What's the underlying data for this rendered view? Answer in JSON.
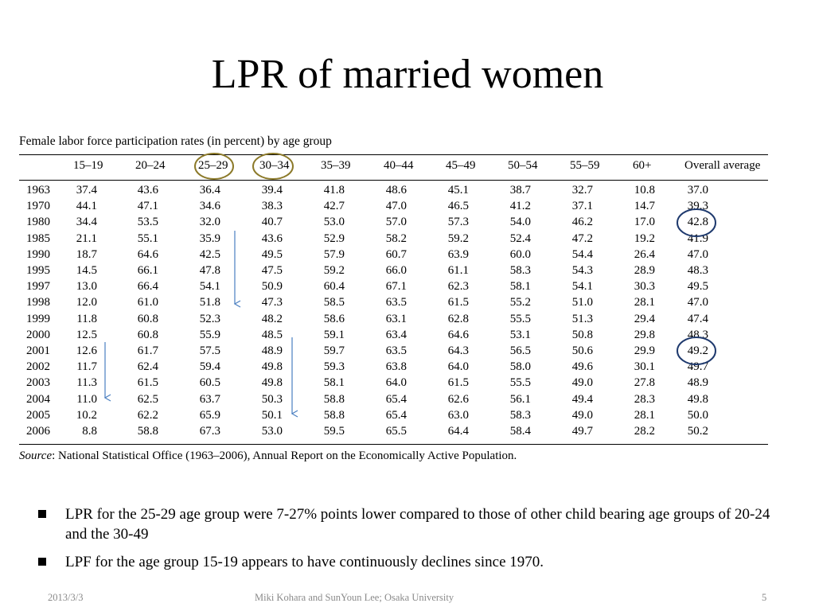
{
  "title": "LPR of married women",
  "table": {
    "caption": "Female labor force participation rates (in percent) by age group",
    "columns": [
      "15–19",
      "20–24",
      "25–29",
      "30–34",
      "35–39",
      "40–44",
      "45–49",
      "50–54",
      "55–59",
      "60+",
      "Overall average"
    ],
    "rows": [
      {
        "year": "1963",
        "values": [
          "37.4",
          "43.6",
          "36.4",
          "39.4",
          "41.8",
          "48.6",
          "45.1",
          "38.7",
          "32.7",
          "10.8",
          "37.0"
        ]
      },
      {
        "year": "1970",
        "values": [
          "44.1",
          "47.1",
          "34.6",
          "38.3",
          "42.7",
          "47.0",
          "46.5",
          "41.2",
          "37.1",
          "14.7",
          "39.3"
        ]
      },
      {
        "year": "1980",
        "values": [
          "34.4",
          "53.5",
          "32.0",
          "40.7",
          "53.0",
          "57.0",
          "57.3",
          "54.0",
          "46.2",
          "17.0",
          "42.8"
        ]
      },
      {
        "year": "1985",
        "values": [
          "21.1",
          "55.1",
          "35.9",
          "43.6",
          "52.9",
          "58.2",
          "59.2",
          "52.4",
          "47.2",
          "19.2",
          "41.9"
        ]
      },
      {
        "year": "1990",
        "values": [
          "18.7",
          "64.6",
          "42.5",
          "49.5",
          "57.9",
          "60.7",
          "63.9",
          "60.0",
          "54.4",
          "26.4",
          "47.0"
        ]
      },
      {
        "year": "1995",
        "values": [
          "14.5",
          "66.1",
          "47.8",
          "47.5",
          "59.2",
          "66.0",
          "61.1",
          "58.3",
          "54.3",
          "28.9",
          "48.3"
        ]
      },
      {
        "year": "1997",
        "values": [
          "13.0",
          "66.4",
          "54.1",
          "50.9",
          "60.4",
          "67.1",
          "62.3",
          "58.1",
          "54.1",
          "30.3",
          "49.5"
        ]
      },
      {
        "year": "1998",
        "values": [
          "12.0",
          "61.0",
          "51.8",
          "47.3",
          "58.5",
          "63.5",
          "61.5",
          "55.2",
          "51.0",
          "28.1",
          "47.0"
        ]
      },
      {
        "year": "1999",
        "values": [
          "11.8",
          "60.8",
          "52.3",
          "48.2",
          "58.6",
          "63.1",
          "62.8",
          "55.5",
          "51.3",
          "29.4",
          "47.4"
        ]
      },
      {
        "year": "2000",
        "values": [
          "12.5",
          "60.8",
          "55.9",
          "48.5",
          "59.1",
          "63.4",
          "64.6",
          "53.1",
          "50.8",
          "29.8",
          "48.3"
        ]
      },
      {
        "year": "2001",
        "values": [
          "12.6",
          "61.7",
          "57.5",
          "48.9",
          "59.7",
          "63.5",
          "64.3",
          "56.5",
          "50.6",
          "29.9",
          "49.2"
        ]
      },
      {
        "year": "2002",
        "values": [
          "11.7",
          "62.4",
          "59.4",
          "49.8",
          "59.3",
          "63.8",
          "64.0",
          "58.0",
          "49.6",
          "30.1",
          "49.7"
        ]
      },
      {
        "year": "2003",
        "values": [
          "11.3",
          "61.5",
          "60.5",
          "49.8",
          "58.1",
          "64.0",
          "61.5",
          "55.5",
          "49.0",
          "27.8",
          "48.9"
        ]
      },
      {
        "year": "2004",
        "values": [
          "11.0",
          "62.5",
          "63.7",
          "50.3",
          "58.8",
          "65.4",
          "62.6",
          "56.1",
          "49.4",
          "28.3",
          "49.8"
        ]
      },
      {
        "year": "2005",
        "values": [
          "10.2",
          "62.2",
          "65.9",
          "50.1",
          "58.8",
          "65.4",
          "63.0",
          "58.3",
          "49.0",
          "28.1",
          "50.0"
        ]
      },
      {
        "year": "2006",
        "values": [
          "8.8",
          "58.8",
          "67.3",
          "53.0",
          "59.5",
          "65.5",
          "64.4",
          "58.4",
          "49.7",
          "28.2",
          "50.2"
        ]
      }
    ],
    "source_label": "Source",
    "source_text": ": National Statistical Office (1963–2006), Annual Report on the Economically Active Population."
  },
  "annotations": {
    "olive_color": "#8c7a2a",
    "navy_color": "#1f3a6e",
    "arrow_color": "#4a7fc0"
  },
  "bullets": [
    "LPR for the 25-29 age group were 7-27% points lower compared to those of other child bearing age groups of 20-24 and the 30-49",
    "LPF for the age group 15-19 appears to have continuously declines since 1970."
  ],
  "footer": {
    "date": "2013/3/3",
    "authors": "Miki Kohara and SunYoun Lee;  Osaka University",
    "page": "5"
  }
}
